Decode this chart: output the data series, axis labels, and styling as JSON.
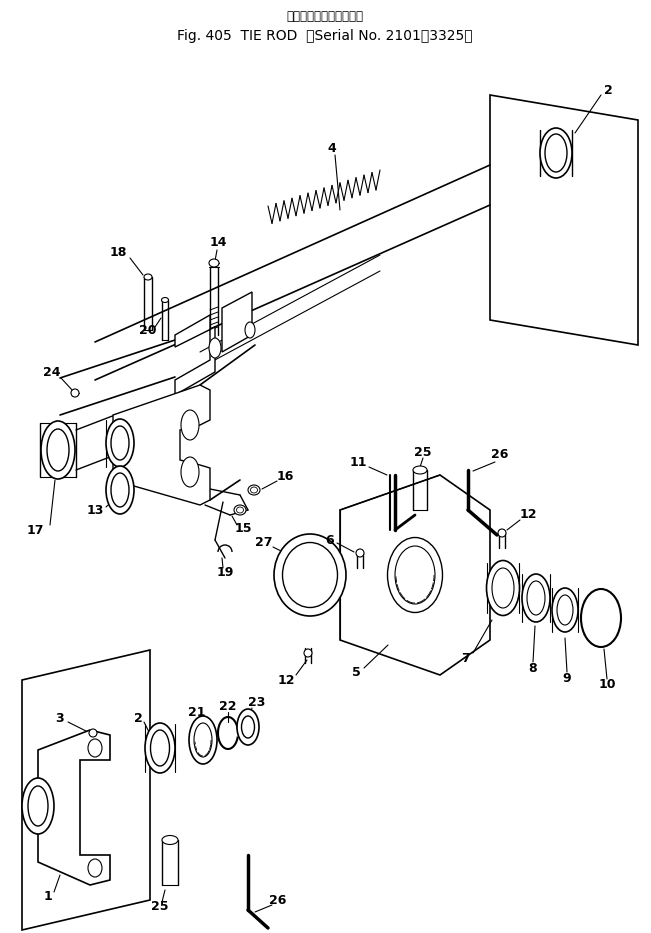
{
  "title_line1": "タイロッド／（適用号機",
  "title_line2": "Fig. 405  TIE ROD  （Serial No. 2101～3325）",
  "bg_color": "#ffffff",
  "line_color": "#000000",
  "fig_width": 6.51,
  "fig_height": 9.33,
  "dpi": 100
}
